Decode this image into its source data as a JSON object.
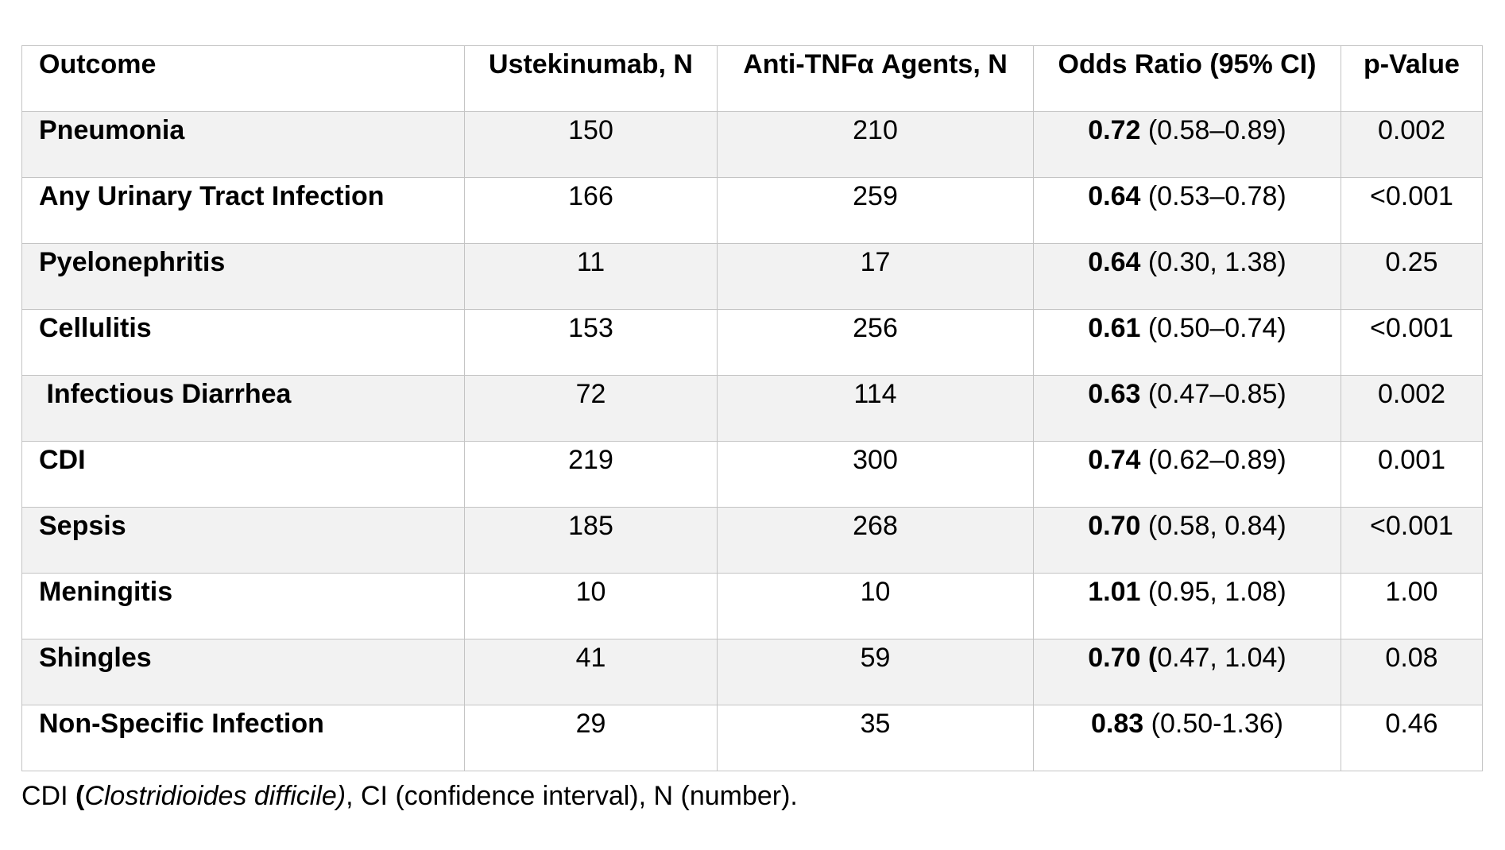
{
  "table": {
    "headers": {
      "outcome": "Outcome",
      "ustekinumab": "Ustekinumab, N",
      "anti_tnf": "Anti-TNFα Agents, N",
      "odds_ratio": "Odds Ratio (95% CI)",
      "p_value": "p-Value"
    },
    "rows": [
      {
        "outcome": "Pneumonia",
        "ustekinumab": "150",
        "anti_tnf": "210",
        "or_value": "0.72",
        "or_ci": " (0.58–0.89)",
        "p_value": "0.002"
      },
      {
        "outcome": "Any Urinary Tract Infection",
        "ustekinumab": "166",
        "anti_tnf": "259",
        "or_value": "0.64",
        "or_ci": " (0.53–0.78)",
        "p_value": "<0.001"
      },
      {
        "outcome": "Pyelonephritis",
        "ustekinumab": "11",
        "anti_tnf": "17",
        "or_value": "0.64",
        "or_ci": " (0.30, 1.38)",
        "p_value": "0.25"
      },
      {
        "outcome": "Cellulitis",
        "ustekinumab": "153",
        "anti_tnf": "256",
        "or_value": "0.61",
        "or_ci": " (0.50–0.74)",
        "p_value": "<0.001"
      },
      {
        "outcome": " Infectious Diarrhea",
        "ustekinumab": "72",
        "anti_tnf": "114",
        "or_value": "0.63",
        "or_ci": " (0.47–0.85)",
        "p_value": "0.002"
      },
      {
        "outcome": "CDI",
        "ustekinumab": "219",
        "anti_tnf": "300",
        "or_value": "0.74",
        "or_ci": " (0.62–0.89)",
        "p_value": "0.001"
      },
      {
        "outcome": "Sepsis",
        "ustekinumab": "185",
        "anti_tnf": "268",
        "or_value": "0.70",
        "or_ci": " (0.58, 0.84)",
        "p_value": "<0.001"
      },
      {
        "outcome": "Meningitis",
        "ustekinumab": "10",
        "anti_tnf": "10",
        "or_value": "1.01",
        "or_ci": " (0.95, 1.08)",
        "p_value": "1.00"
      },
      {
        "outcome": "Shingles",
        "ustekinumab": "41",
        "anti_tnf": "59",
        "or_value": "0.70 (",
        "or_ci": "0.47, 1.04)",
        "p_value": "0.08"
      },
      {
        "outcome": "Non-Specific Infection",
        "ustekinumab": "29",
        "anti_tnf": "35",
        "or_value": "0.83",
        "or_ci": " (0.50-1.36)",
        "p_value": "0.46"
      }
    ]
  },
  "footnote": {
    "abbr": "CDI ",
    "open_paren": "(",
    "organism": "Clostridioides difficile)",
    "rest": ", CI (confidence interval), N (number)."
  },
  "colors": {
    "stripe": "#f2f2f2",
    "border": "#c4c4c4",
    "text": "#000000"
  }
}
